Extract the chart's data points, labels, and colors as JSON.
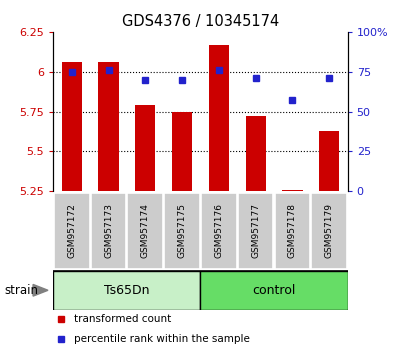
{
  "title": "GDS4376 / 10345174",
  "samples": [
    "GSM957172",
    "GSM957173",
    "GSM957174",
    "GSM957175",
    "GSM957176",
    "GSM957177",
    "GSM957178",
    "GSM957179"
  ],
  "red_values": [
    6.06,
    6.06,
    5.79,
    5.75,
    6.17,
    5.72,
    5.26,
    5.63
  ],
  "blue_values": [
    75,
    76,
    70,
    70,
    76,
    71,
    57,
    71
  ],
  "ylim_left": [
    5.25,
    6.25
  ],
  "ylim_right": [
    0,
    100
  ],
  "yticks_left": [
    5.25,
    5.5,
    5.75,
    6.0,
    6.25
  ],
  "yticks_right": [
    0,
    25,
    50,
    75,
    100
  ],
  "ytick_labels_left": [
    "5.25",
    "5.5",
    "5.75",
    "6",
    "6.25"
  ],
  "ytick_labels_right": [
    "0",
    "25",
    "50",
    "75",
    "100%"
  ],
  "grid_lines": [
    6.0,
    5.75,
    5.5
  ],
  "groups": [
    {
      "label": "Ts65Dn",
      "start": 0,
      "end": 4,
      "color": "#c8f0c8"
    },
    {
      "label": "control",
      "start": 4,
      "end": 8,
      "color": "#66dd66"
    }
  ],
  "strain_label": "strain",
  "bar_color": "#cc0000",
  "dot_color": "#2222cc",
  "bar_bottom": 5.25,
  "bar_width": 0.55,
  "sample_box_color": "#cccccc",
  "bg_color": "#ffffff",
  "legend_items": [
    {
      "label": "transformed count",
      "color": "#cc0000"
    },
    {
      "label": "percentile rank within the sample",
      "color": "#2222cc"
    }
  ]
}
